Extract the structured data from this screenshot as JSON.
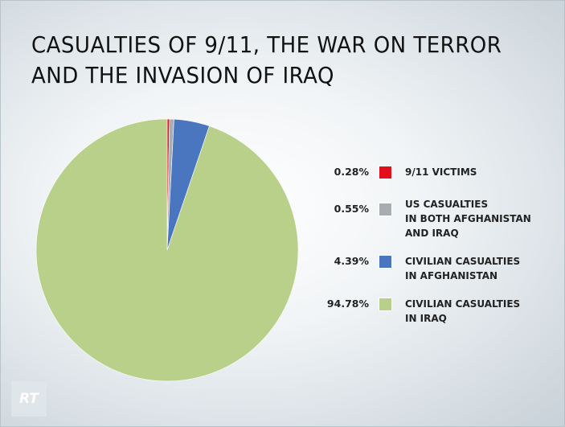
{
  "title": {
    "line1": "CASUALTIES OF 9/11, THE WAR ON TERROR",
    "line2": "AND THE INVASION OF IRAQ"
  },
  "logo": {
    "text": "RT"
  },
  "chart_data": {
    "type": "pie",
    "title": "CASUALTIES OF 9/11, THE WAR ON TERROR AND THE INVASION OF IRAQ",
    "legend_position": "right",
    "slices": [
      {
        "key": "victims911",
        "label_lines": [
          "9/11 VICTIMS"
        ],
        "value": 0.28,
        "value_label": "0.28%",
        "color": "#e3101b"
      },
      {
        "key": "us",
        "label_lines": [
          "US CASUALTIES",
          "IN BOTH AFGHANISTAN",
          "AND IRAQ"
        ],
        "value": 0.55,
        "value_label": "0.55%",
        "color": "#a8adb2"
      },
      {
        "key": "afghan",
        "label_lines": [
          "CIVILIAN CASUALTIES",
          "IN AFGHANISTAN"
        ],
        "value": 4.39,
        "value_label": "4.39%",
        "color": "#4a76bf"
      },
      {
        "key": "iraq",
        "label_lines": [
          "CIVILIAN CASUALTIES",
          "IN IRAQ"
        ],
        "value": 94.78,
        "value_label": "94.78%",
        "color": "#b9d08b"
      }
    ]
  }
}
